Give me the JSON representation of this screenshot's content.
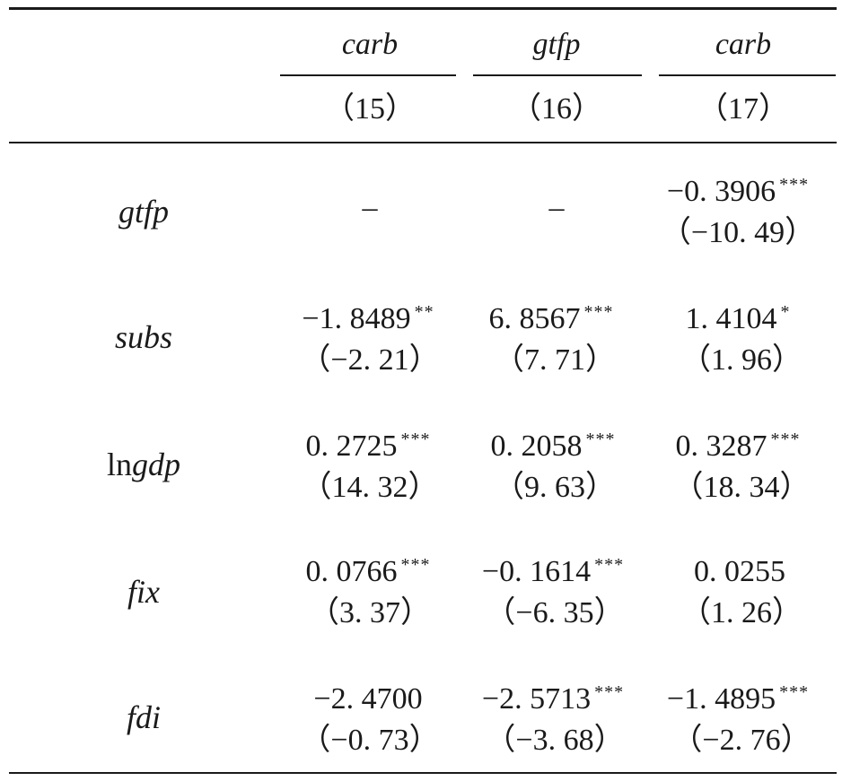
{
  "header": {
    "depvars": [
      "carb",
      "gtfp",
      "carb"
    ],
    "models": [
      "（15）",
      "（16）",
      "（17）"
    ]
  },
  "rows": [
    {
      "var": "gtfp",
      "cells": [
        {
          "coef": "–",
          "stars": "",
          "t": ""
        },
        {
          "coef": "–",
          "stars": "",
          "t": ""
        },
        {
          "coef": "−0. 3906",
          "stars": "***",
          "t": "（−10. 49）"
        }
      ]
    },
    {
      "var": "subs",
      "cells": [
        {
          "coef": "−1. 8489",
          "stars": "**",
          "t": "（−2. 21）"
        },
        {
          "coef": "6. 8567",
          "stars": "***",
          "t": "（7. 71）"
        },
        {
          "coef": "1. 4104",
          "stars": "*",
          "t": "（1. 96）"
        }
      ]
    },
    {
      "var_prefix": "ln",
      "var": "gdp",
      "cells": [
        {
          "coef": "0. 2725",
          "stars": "***",
          "t": "（14. 32）"
        },
        {
          "coef": "0. 2058",
          "stars": "***",
          "t": "（9. 63）"
        },
        {
          "coef": "0. 3287",
          "stars": "***",
          "t": "（18. 34）"
        }
      ]
    },
    {
      "var": "fix",
      "cells": [
        {
          "coef": "0. 0766",
          "stars": "***",
          "t": "（3. 37）"
        },
        {
          "coef": "−0. 1614",
          "stars": "***",
          "t": "（−6. 35）"
        },
        {
          "coef": "0. 0255",
          "stars": "",
          "t": "（1. 26）"
        }
      ]
    },
    {
      "var": "fdi",
      "cells": [
        {
          "coef": "−2. 4700",
          "stars": "",
          "t": "（−0. 73）"
        },
        {
          "coef": "−2. 5713",
          "stars": "***",
          "t": "（−3. 68）"
        },
        {
          "coef": "−1. 4895",
          "stars": "***",
          "t": "（−2. 76）"
        }
      ]
    }
  ]
}
